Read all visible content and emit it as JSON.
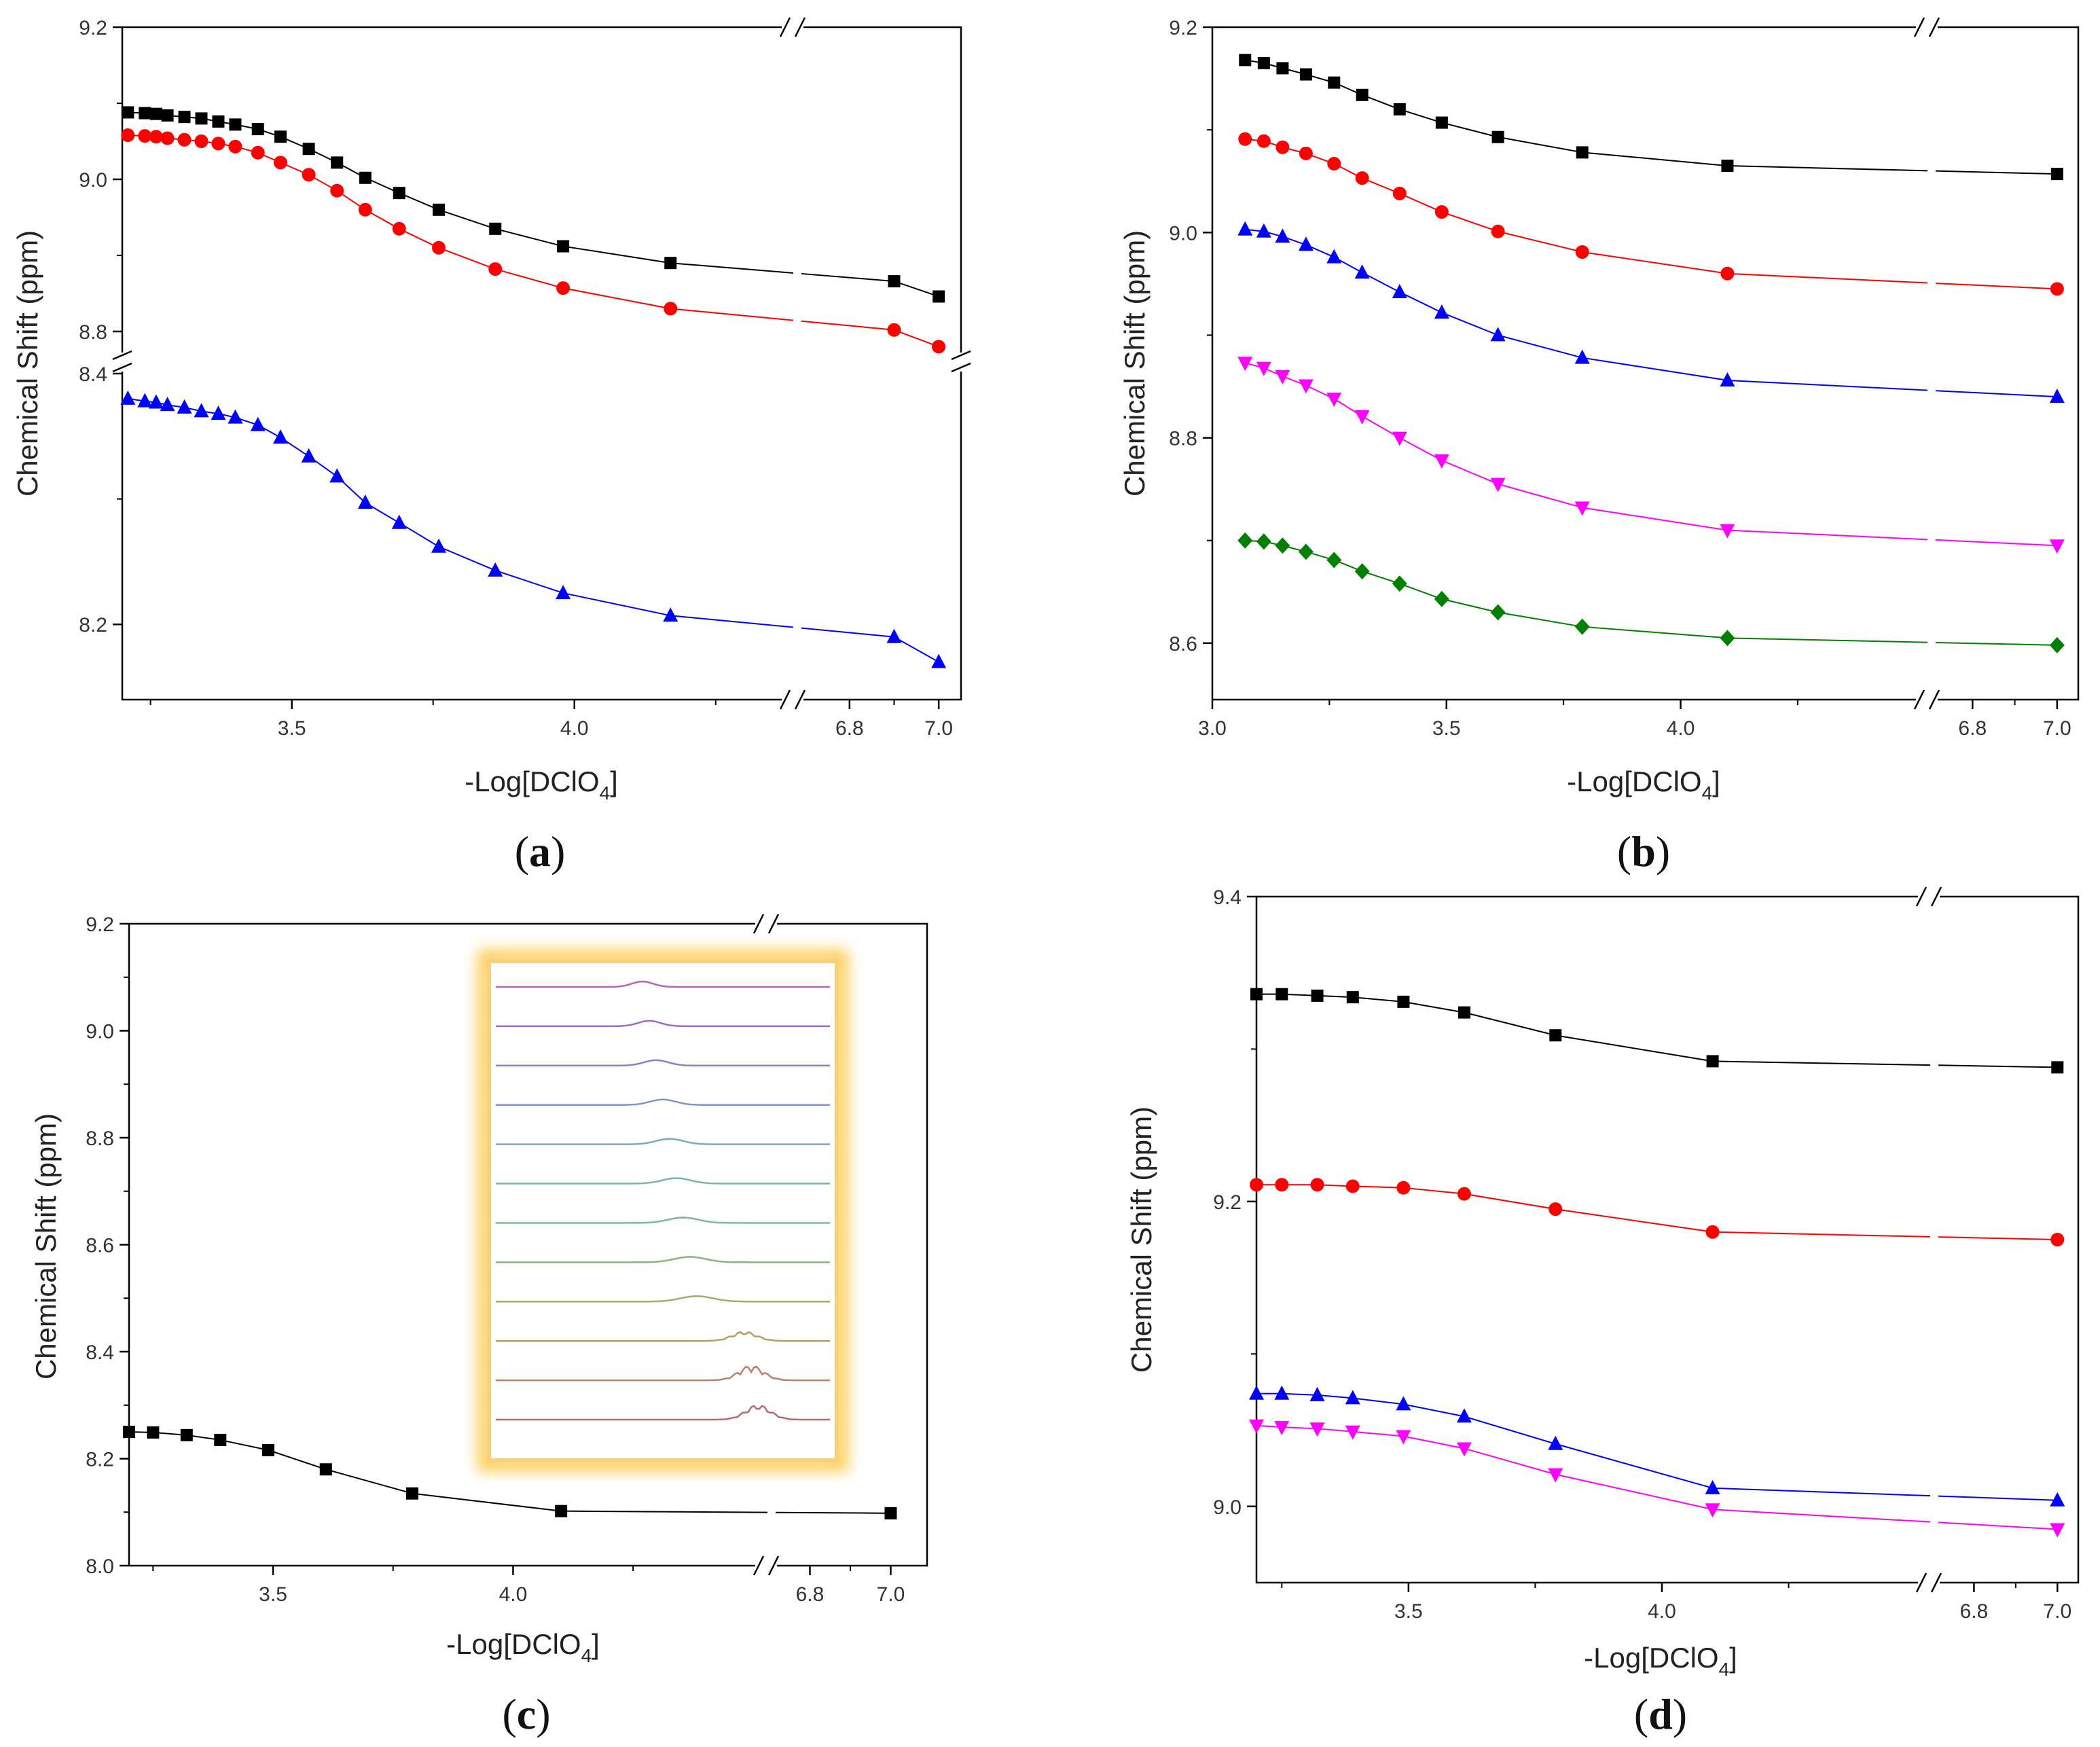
{
  "chart_data": [
    {
      "panel": "a",
      "label": "(a)",
      "label_letter": "a",
      "type": "line",
      "xlabel": "-Log[DClO4]",
      "xlabel_main": "-Log[DClO",
      "xlabel_sub": "4",
      "xlabel_end": "]",
      "ylabel": "Chemical Shift (ppm)",
      "x_breaks": {
        "left_range": [
          3.2,
          4.38
        ],
        "right_range": [
          6.68,
          7.05
        ]
      },
      "y_breaks": {
        "upper_range": [
          8.775,
          9.2
        ],
        "lower_range": [
          8.14,
          8.4
        ]
      },
      "x_ticks": [
        "3.5",
        "4.0",
        "6.8",
        "7.0"
      ],
      "y_ticks": [
        "9.2",
        "9.0",
        "8.8",
        "8.4",
        "8.2"
      ],
      "series": [
        {
          "name": "black squares",
          "color": "#000000",
          "marker": "square",
          "x": [
            3.21,
            3.24,
            3.26,
            3.28,
            3.31,
            3.34,
            3.37,
            3.4,
            3.44,
            3.48,
            3.53,
            3.58,
            3.63,
            3.69,
            3.76,
            3.86,
            3.98,
            4.17,
            6.9,
            7.0
          ],
          "y": [
            9.088,
            9.087,
            9.086,
            9.084,
            9.082,
            9.08,
            9.076,
            9.072,
            9.066,
            9.056,
            9.04,
            9.022,
            9.002,
            8.982,
            8.96,
            8.935,
            8.912,
            8.89,
            8.866,
            8.846
          ]
        },
        {
          "name": "red circles",
          "color": "#ff0000",
          "marker": "circle",
          "x": [
            3.21,
            3.24,
            3.26,
            3.28,
            3.31,
            3.34,
            3.37,
            3.4,
            3.44,
            3.48,
            3.53,
            3.58,
            3.63,
            3.69,
            3.76,
            3.86,
            3.98,
            4.17,
            6.9,
            7.0
          ],
          "y": [
            9.058,
            9.057,
            9.056,
            9.054,
            9.052,
            9.05,
            9.047,
            9.043,
            9.035,
            9.022,
            9.006,
            8.985,
            8.96,
            8.935,
            8.91,
            8.882,
            8.857,
            8.83,
            8.802,
            8.78
          ]
        },
        {
          "name": "blue triangles",
          "color": "#0000ff",
          "marker": "triangle-up",
          "x": [
            3.21,
            3.24,
            3.26,
            3.28,
            3.31,
            3.34,
            3.37,
            3.4,
            3.44,
            3.48,
            3.53,
            3.58,
            3.63,
            3.69,
            3.76,
            3.86,
            3.98,
            4.17,
            6.9,
            7.0
          ],
          "y": [
            8.38,
            8.378,
            8.377,
            8.375,
            8.373,
            8.37,
            8.368,
            8.365,
            8.359,
            8.349,
            8.334,
            8.318,
            8.297,
            8.281,
            8.262,
            8.243,
            8.225,
            8.207,
            8.19,
            8.17
          ]
        }
      ]
    },
    {
      "panel": "b",
      "label": "(b)",
      "label_letter": "b",
      "type": "line",
      "xlabel": "-Log[DClO4]",
      "xlabel_main": "-Log[DClO",
      "xlabel_sub": "4",
      "xlabel_end": "]",
      "ylabel": "Chemical Shift (ppm)",
      "x_breaks": {
        "left_range": [
          3.0,
          4.52
        ],
        "right_range": [
          6.7,
          7.05
        ]
      },
      "ylim": [
        8.545,
        9.2
      ],
      "x_ticks": [
        "3.0",
        "3.5",
        "4.0",
        "6.8",
        "7.0"
      ],
      "y_ticks": [
        "9.2",
        "9.0",
        "8.8",
        "8.6"
      ],
      "series": [
        {
          "name": "black squares",
          "color": "#000000",
          "marker": "square",
          "x": [
            3.07,
            3.11,
            3.15,
            3.2,
            3.26,
            3.32,
            3.4,
            3.49,
            3.61,
            3.79,
            4.1,
            7.0
          ],
          "y": [
            9.168,
            9.165,
            9.16,
            9.154,
            9.146,
            9.134,
            9.12,
            9.107,
            9.093,
            9.078,
            9.065,
            9.057
          ]
        },
        {
          "name": "red circles",
          "color": "#ff0000",
          "marker": "circle",
          "x": [
            3.07,
            3.11,
            3.15,
            3.2,
            3.26,
            3.32,
            3.4,
            3.49,
            3.61,
            3.79,
            4.1,
            7.0
          ],
          "y": [
            9.091,
            9.089,
            9.083,
            9.077,
            9.067,
            9.053,
            9.038,
            9.02,
            9.001,
            8.981,
            8.96,
            8.945
          ]
        },
        {
          "name": "blue triangles",
          "color": "#0000ff",
          "marker": "triangle-up",
          "x": [
            3.07,
            3.11,
            3.15,
            3.2,
            3.26,
            3.32,
            3.4,
            3.49,
            3.61,
            3.79,
            4.1,
            7.0
          ],
          "y": [
            9.003,
            9.001,
            8.996,
            8.988,
            8.976,
            8.961,
            8.942,
            8.922,
            8.9,
            8.878,
            8.856,
            8.84
          ]
        },
        {
          "name": "magenta triangles",
          "color": "#ff00ff",
          "marker": "triangle-down",
          "x": [
            3.07,
            3.11,
            3.15,
            3.2,
            3.26,
            3.32,
            3.4,
            3.49,
            3.61,
            3.79,
            4.1,
            7.0
          ],
          "y": [
            8.873,
            8.868,
            8.86,
            8.851,
            8.838,
            8.821,
            8.8,
            8.778,
            8.755,
            8.732,
            8.71,
            8.695
          ]
        },
        {
          "name": "green diamonds",
          "color": "#008000",
          "marker": "diamond",
          "x": [
            3.07,
            3.11,
            3.15,
            3.2,
            3.26,
            3.32,
            3.4,
            3.49,
            3.61,
            3.79,
            4.1,
            7.0
          ],
          "y": [
            8.7,
            8.699,
            8.695,
            8.689,
            8.681,
            8.67,
            8.658,
            8.643,
            8.63,
            8.616,
            8.605,
            8.598
          ]
        }
      ]
    },
    {
      "panel": "c",
      "label": "(c)",
      "label_letter": "c",
      "type": "line",
      "xlabel": "-Log[DClO4]",
      "xlabel_main": "-Log[DClO",
      "xlabel_sub": "4",
      "xlabel_end": "]",
      "ylabel": "Chemical Shift (ppm)",
      "x_breaks": {
        "left_range": [
          3.2,
          4.52
        ],
        "right_range": [
          6.7,
          7.09
        ]
      },
      "ylim": [
        8.0,
        9.2
      ],
      "x_ticks": [
        "3.5",
        "4.0",
        "6.8",
        "7.0"
      ],
      "y_ticks": [
        "9.2",
        "9.0",
        "8.8",
        "8.6",
        "8.4",
        "8.2",
        "8.0"
      ],
      "series": [
        {
          "name": "black squares",
          "color": "#000000",
          "marker": "square",
          "x": [
            3.2,
            3.25,
            3.32,
            3.39,
            3.49,
            3.61,
            3.79,
            4.1,
            7.0
          ],
          "y": [
            8.25,
            8.249,
            8.244,
            8.235,
            8.216,
            8.18,
            8.135,
            8.102,
            8.098
          ]
        }
      ],
      "inset": {
        "description": "stacked NMR spectra",
        "spectra_count": 12
      }
    },
    {
      "panel": "d",
      "label": "(d)",
      "label_letter": "d",
      "type": "line",
      "xlabel": "-Log[DClO4]",
      "xlabel_main": "-Log[DClO",
      "xlabel_sub": "4",
      "xlabel_end": "]",
      "ylabel": "Chemical Shift (ppm)",
      "x_breaks": {
        "left_range": [
          3.2,
          4.52
        ],
        "right_range": [
          6.7,
          7.05
        ]
      },
      "ylim": [
        8.95,
        9.4
      ],
      "x_ticks": [
        "3.5",
        "4.0",
        "6.8",
        "7.0"
      ],
      "y_ticks": [
        "9.4",
        "9.2",
        "9.0"
      ],
      "series": [
        {
          "name": "black squares",
          "color": "#000000",
          "marker": "square",
          "x": [
            3.2,
            3.25,
            3.32,
            3.39,
            3.49,
            3.61,
            3.79,
            4.1,
            7.0
          ],
          "y": [
            9.336,
            9.336,
            9.335,
            9.334,
            9.331,
            9.324,
            9.309,
            9.292,
            9.288
          ]
        },
        {
          "name": "red circles",
          "color": "#ff0000",
          "marker": "circle",
          "x": [
            3.2,
            3.25,
            3.32,
            3.39,
            3.49,
            3.61,
            3.79,
            4.1,
            7.0
          ],
          "y": [
            9.211,
            9.211,
            9.211,
            9.21,
            9.209,
            9.205,
            9.195,
            9.18,
            9.175
          ]
        },
        {
          "name": "blue triangles",
          "color": "#0000ff",
          "marker": "triangle-up",
          "x": [
            3.2,
            3.25,
            3.32,
            3.39,
            3.49,
            3.61,
            3.79,
            4.1,
            7.0
          ],
          "y": [
            9.074,
            9.074,
            9.073,
            9.071,
            9.067,
            9.059,
            9.041,
            9.012,
            9.004
          ]
        },
        {
          "name": "magenta triangles",
          "color": "#ff00ff",
          "marker": "triangle-down",
          "x": [
            3.2,
            3.25,
            3.32,
            3.39,
            3.49,
            3.61,
            3.79,
            4.1,
            7.0
          ],
          "y": [
            9.053,
            9.052,
            9.051,
            9.049,
            9.046,
            9.038,
            9.021,
            8.998,
            8.985
          ]
        }
      ]
    }
  ]
}
